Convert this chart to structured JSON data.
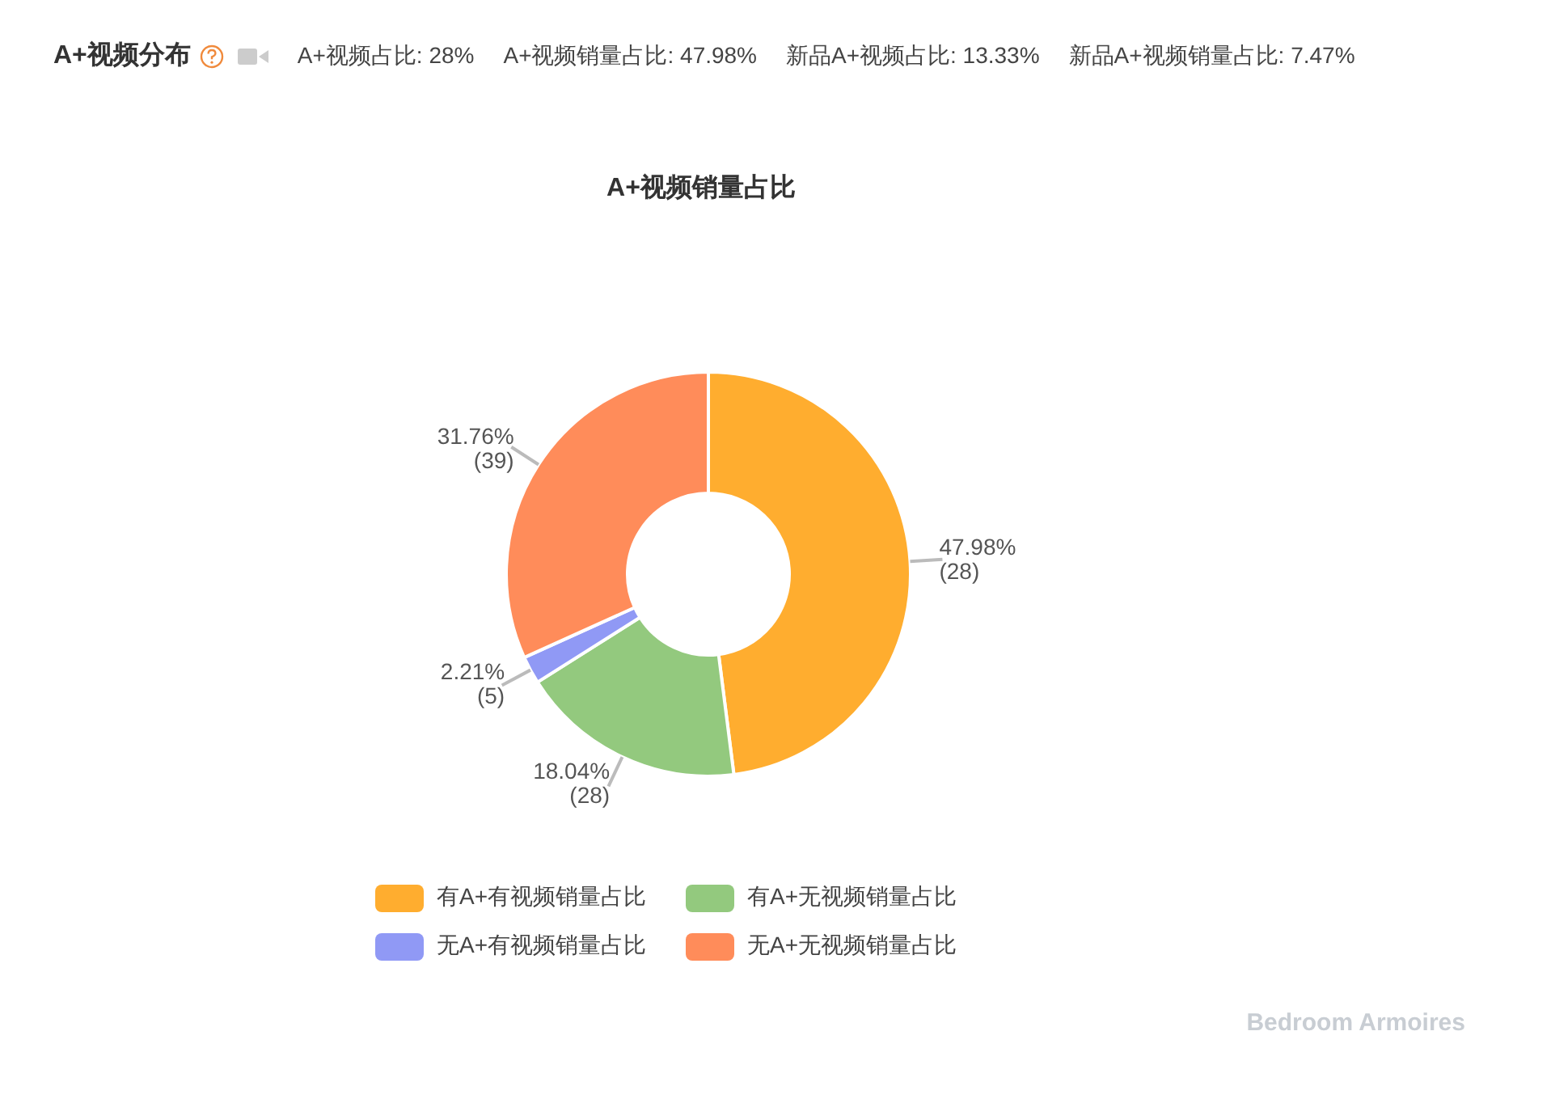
{
  "chart_data": {
    "type": "donut",
    "title": "A+视频分布",
    "subtitle": "A+视频销量占比",
    "annotations": [
      "A+视频占比: 28%",
      "A+视频销量占比: 47.98%",
      "新品A+视频占比: 13.33%",
      "新品A+视频销量占比: 7.47%",
      "Bedroom Armoires"
    ],
    "categories": [
      "有A+有视频销量占比",
      "有A+无视频销量占比",
      "无A+有视频销量占比",
      "无A+无视频销量占比"
    ],
    "values": [
      47.98,
      18.04,
      2.21,
      31.76
    ],
    "value_labels": [
      "47.98%\n(28)",
      "18.04%\n(28)",
      "2.21%\n(5)",
      "31.76%\n(39)"
    ],
    "colors": [
      "#ffad2f",
      "#93c97e",
      "#9099f5",
      "#ff8c5a"
    ],
    "legend": "bottom"
  }
}
